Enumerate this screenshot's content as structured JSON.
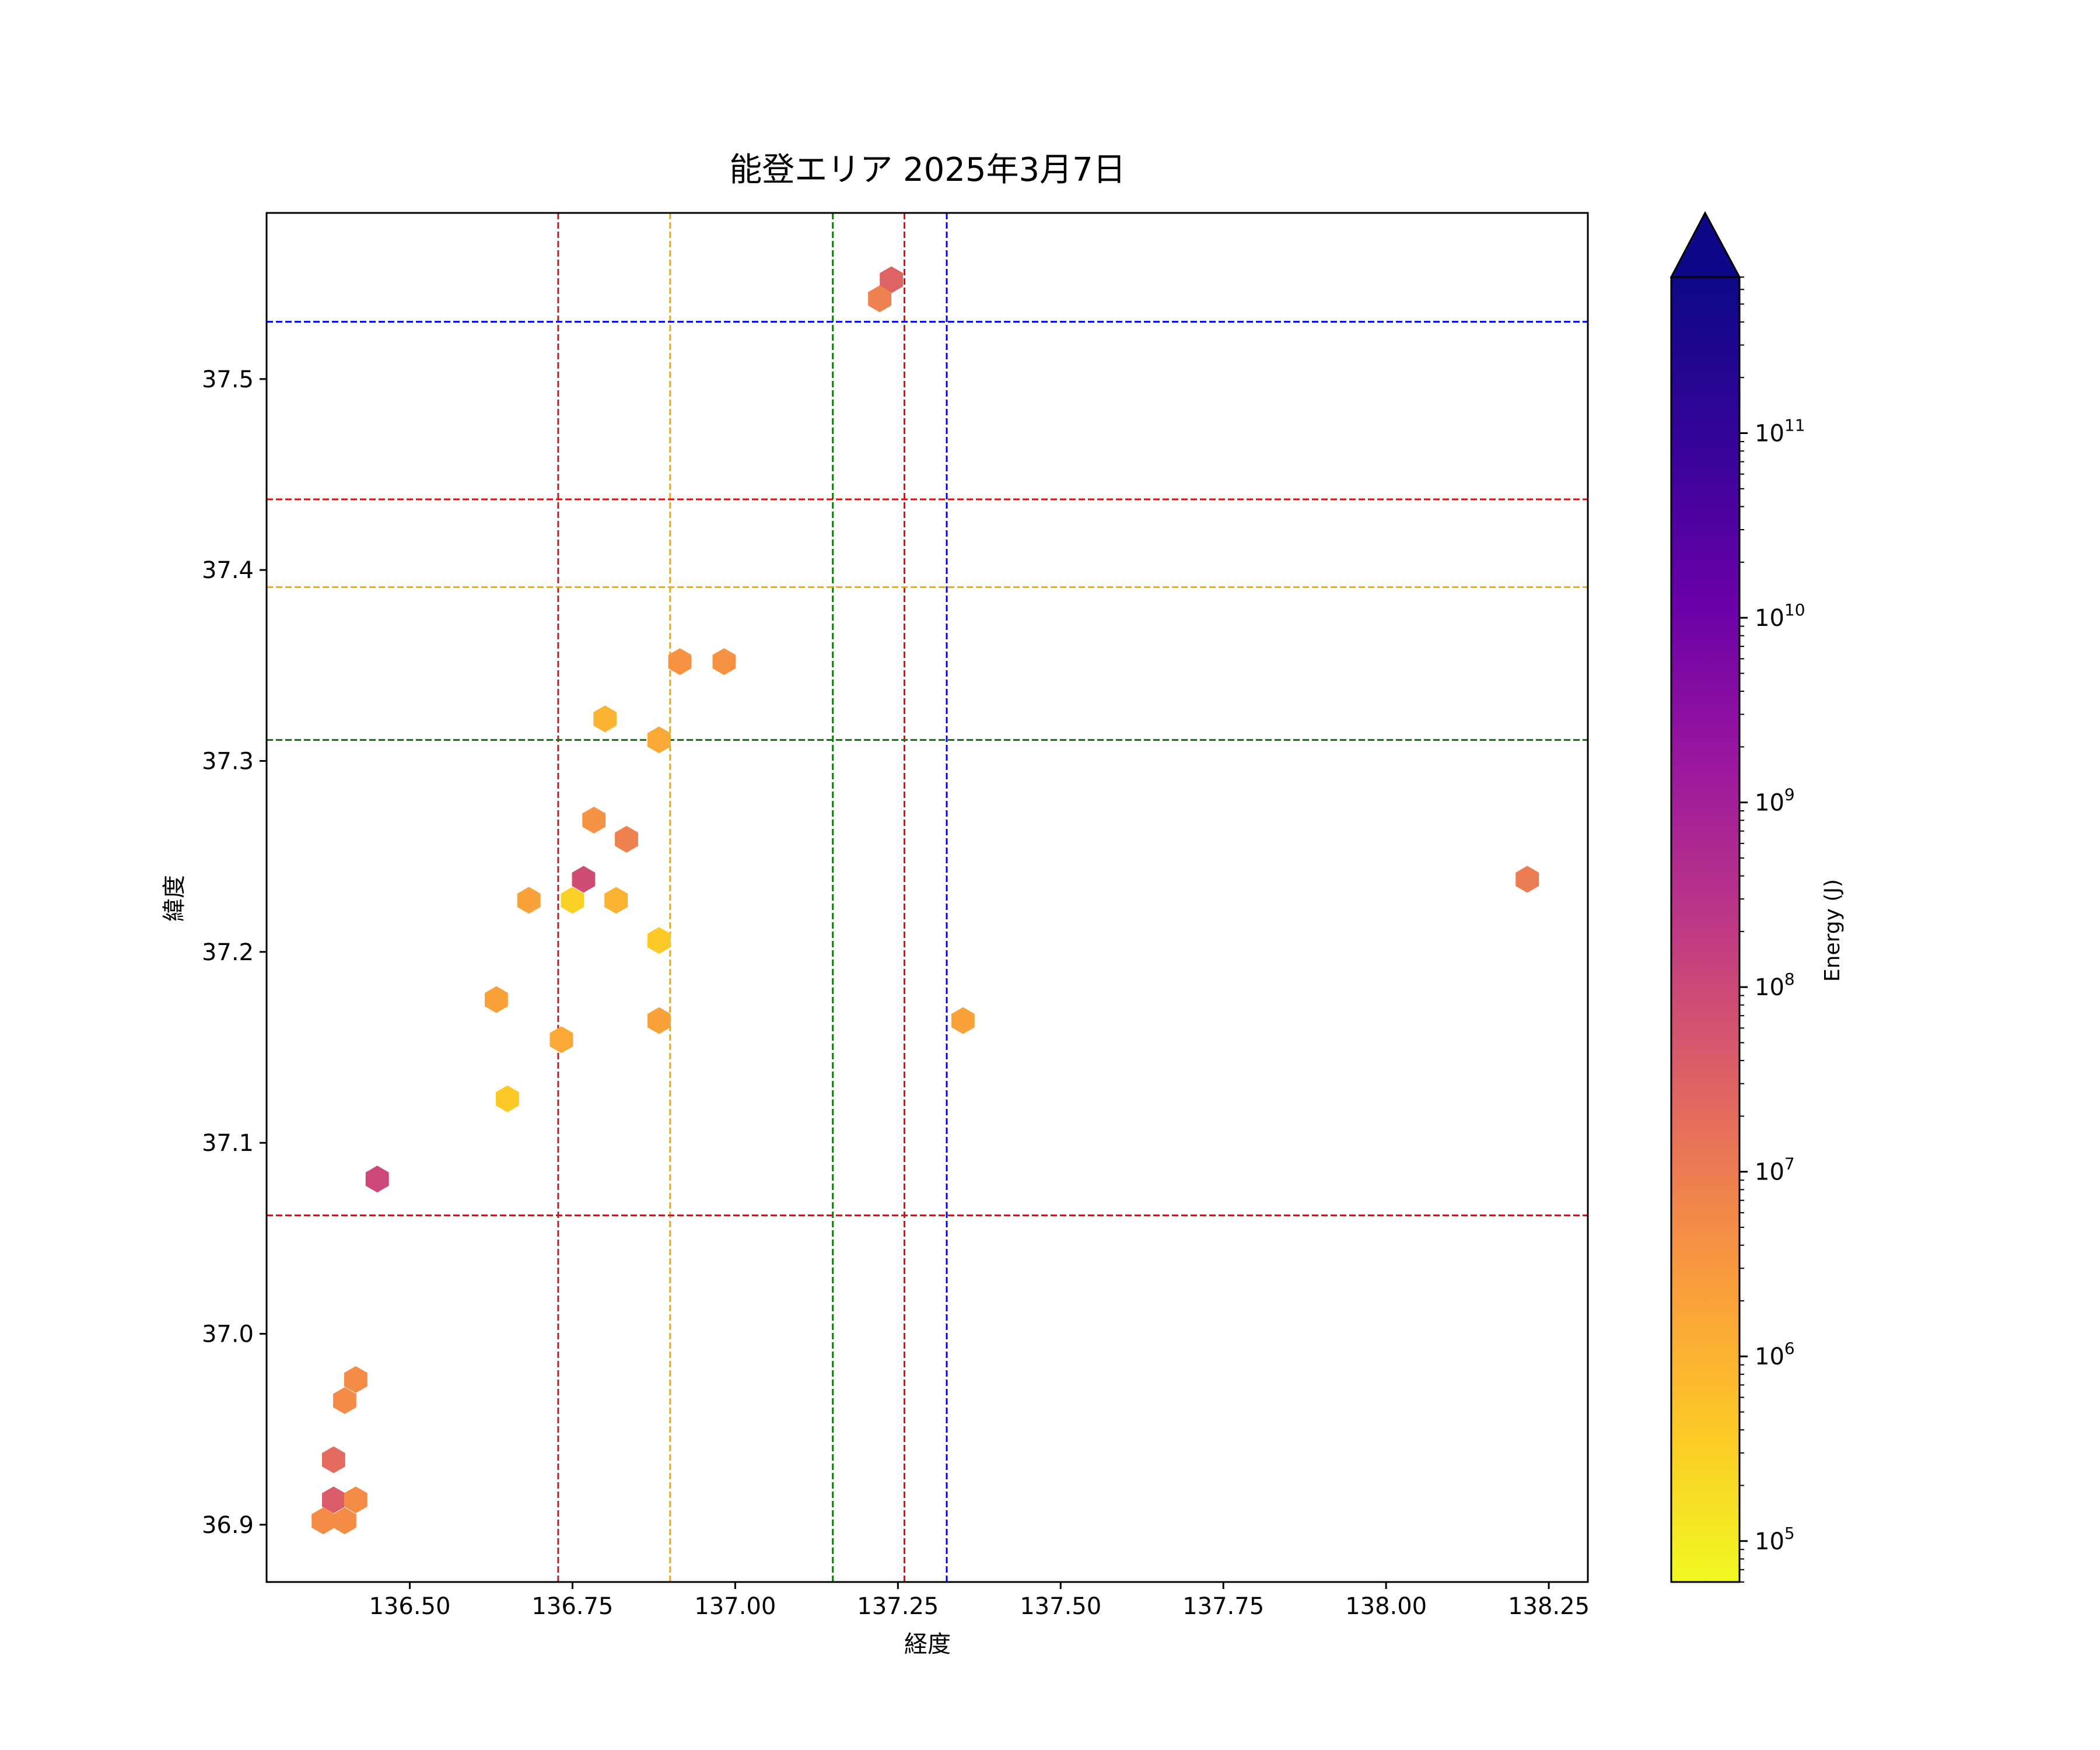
{
  "chart_data": {
    "type": "hexbin",
    "title": "能登エリア 2025年3月7日",
    "xlabel": "経度",
    "ylabel": "緯度",
    "xlim": [
      136.28,
      138.31
    ],
    "ylim": [
      36.87,
      37.587
    ],
    "x_ticks": [
      136.5,
      136.75,
      137.0,
      137.25,
      137.5,
      137.75,
      138.0,
      138.25
    ],
    "x_tick_labels": [
      "136.50",
      "136.75",
      "137.00",
      "137.25",
      "137.50",
      "137.75",
      "138.00",
      "138.25"
    ],
    "y_ticks": [
      36.9,
      37.0,
      37.1,
      37.2,
      37.3,
      37.4,
      37.5
    ],
    "y_tick_labels": [
      "36.9",
      "37.0",
      "37.1",
      "37.2",
      "37.3",
      "37.4",
      "37.5"
    ],
    "colorbar": {
      "label": "Energy (J)",
      "colormap": "plasma_r",
      "scale": "log",
      "range": [
        60000,
        700000000000
      ],
      "extend": "max",
      "ticks": [
        {
          "exp": 5,
          "base": "10",
          "sup": "5"
        },
        {
          "exp": 6,
          "base": "10",
          "sup": "6"
        },
        {
          "exp": 7,
          "base": "10",
          "sup": "7"
        },
        {
          "exp": 8,
          "base": "10",
          "sup": "8"
        },
        {
          "exp": 9,
          "base": "10",
          "sup": "9"
        },
        {
          "exp": 10,
          "base": "10",
          "sup": "10"
        },
        {
          "exp": 11,
          "base": "10",
          "sup": "11"
        }
      ]
    },
    "reference_lines": [
      {
        "orientation": "vertical",
        "value": 136.728,
        "color": "#b22222"
      },
      {
        "orientation": "vertical",
        "value": 136.9,
        "color": "#ffa500"
      },
      {
        "orientation": "vertical",
        "value": 137.15,
        "color": "#008000"
      },
      {
        "orientation": "vertical",
        "value": 137.26,
        "color": "#ff0000"
      },
      {
        "orientation": "vertical",
        "value": 137.325,
        "color": "#0000ff"
      },
      {
        "orientation": "horizontal",
        "value": 37.53,
        "color": "#0000ff"
      },
      {
        "orientation": "horizontal",
        "value": 37.437,
        "color": "#ff0000"
      },
      {
        "orientation": "horizontal",
        "value": 37.391,
        "color": "#ffa500"
      },
      {
        "orientation": "horizontal",
        "value": 37.311,
        "color": "#008000"
      },
      {
        "orientation": "horizontal",
        "value": 37.062,
        "color": "#b22222"
      }
    ],
    "points": [
      {
        "lon": 137.24,
        "lat": 37.552,
        "energy": 30000000.0
      },
      {
        "lon": 137.222,
        "lat": 37.542,
        "energy": 8000000.0
      },
      {
        "lon": 136.915,
        "lat": 37.352,
        "energy": 4000000.0
      },
      {
        "lon": 136.983,
        "lat": 37.352,
        "energy": 4000000.0
      },
      {
        "lon": 136.8,
        "lat": 37.322,
        "energy": 1000000.0
      },
      {
        "lon": 136.883,
        "lat": 37.311,
        "energy": 1500000.0
      },
      {
        "lon": 136.783,
        "lat": 37.269,
        "energy": 4000000.0
      },
      {
        "lon": 136.833,
        "lat": 37.259,
        "energy": 8000000.0
      },
      {
        "lon": 136.767,
        "lat": 37.238,
        "energy": 80000000.0
      },
      {
        "lon": 138.217,
        "lat": 37.238,
        "energy": 10000000.0
      },
      {
        "lon": 136.683,
        "lat": 37.227,
        "energy": 2000000.0
      },
      {
        "lon": 136.75,
        "lat": 37.227,
        "energy": 300000.0
      },
      {
        "lon": 136.817,
        "lat": 37.227,
        "energy": 1000000.0
      },
      {
        "lon": 136.883,
        "lat": 37.206,
        "energy": 400000.0
      },
      {
        "lon": 136.633,
        "lat": 37.175,
        "energy": 2000000.0
      },
      {
        "lon": 136.883,
        "lat": 37.164,
        "energy": 2000000.0
      },
      {
        "lon": 137.35,
        "lat": 37.164,
        "energy": 2000000.0
      },
      {
        "lon": 136.733,
        "lat": 37.154,
        "energy": 1500000.0
      },
      {
        "lon": 136.65,
        "lat": 37.123,
        "energy": 400000.0
      },
      {
        "lon": 136.45,
        "lat": 37.081,
        "energy": 100000000.0
      },
      {
        "lon": 136.417,
        "lat": 36.976,
        "energy": 5000000.0
      },
      {
        "lon": 136.4,
        "lat": 36.965,
        "energy": 5000000.0
      },
      {
        "lon": 136.383,
        "lat": 36.934,
        "energy": 20000000.0
      },
      {
        "lon": 136.383,
        "lat": 36.913,
        "energy": 40000000.0
      },
      {
        "lon": 136.417,
        "lat": 36.913,
        "energy": 5000000.0
      },
      {
        "lon": 136.367,
        "lat": 36.902,
        "energy": 5000000.0
      },
      {
        "lon": 136.4,
        "lat": 36.902,
        "energy": 5000000.0
      }
    ]
  }
}
